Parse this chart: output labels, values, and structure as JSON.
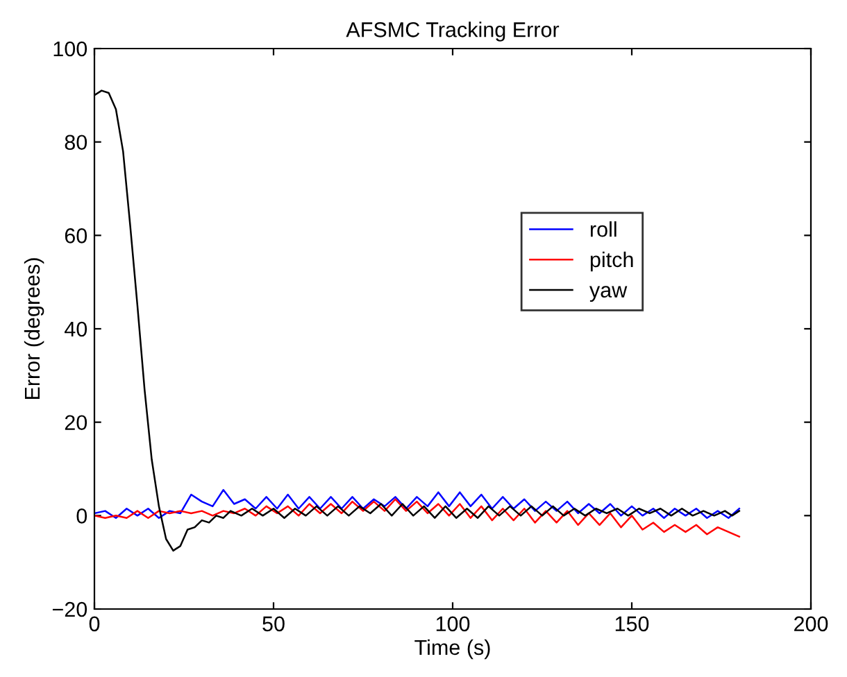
{
  "chart_data": {
    "type": "line",
    "title": "AFSMC Tracking Error",
    "xlabel": "Time (s)",
    "ylabel": "Error (degrees)",
    "xlim": [
      0,
      200
    ],
    "ylim": [
      -20,
      100
    ],
    "xticks": [
      0,
      50,
      100,
      150,
      200
    ],
    "yticks": [
      -20,
      0,
      20,
      40,
      60,
      80,
      100
    ],
    "grid": false,
    "legend": "right",
    "marker": "none",
    "line_style": "solid",
    "series": [
      {
        "name": "roll",
        "color": "#0000ff",
        "x": [
          0,
          3,
          6,
          9,
          12,
          15,
          18,
          21,
          24,
          27,
          30,
          33,
          36,
          39,
          42,
          45,
          48,
          51,
          54,
          57,
          60,
          63,
          66,
          69,
          72,
          75,
          78,
          81,
          84,
          87,
          90,
          93,
          96,
          99,
          102,
          105,
          108,
          111,
          114,
          117,
          120,
          123,
          126,
          129,
          132,
          135,
          138,
          141,
          144,
          147,
          150,
          153,
          156,
          159,
          162,
          165,
          168,
          171,
          174,
          177,
          180
        ],
        "values": [
          0.5,
          1,
          -0.5,
          1.5,
          0,
          1.5,
          -0.5,
          1,
          0.5,
          4.5,
          3,
          2,
          5.5,
          2.5,
          3.5,
          1.5,
          4,
          1.5,
          4.5,
          1.5,
          4,
          1.5,
          4,
          1.5,
          4,
          1.5,
          3.5,
          2,
          4,
          1.5,
          4,
          2,
          5,
          2,
          5,
          2,
          4.5,
          1.5,
          4,
          1.5,
          3.5,
          1,
          3,
          1,
          3,
          0.5,
          2.5,
          0.5,
          2.5,
          0,
          2,
          0,
          1.5,
          -0.5,
          1.5,
          0,
          1.5,
          -0.5,
          1,
          -0.5,
          1.5
        ]
      },
      {
        "name": "pitch",
        "color": "#ff0000",
        "x": [
          0,
          3,
          6,
          9,
          12,
          15,
          18,
          21,
          24,
          27,
          30,
          33,
          36,
          39,
          42,
          45,
          48,
          51,
          54,
          57,
          60,
          63,
          66,
          69,
          72,
          75,
          78,
          81,
          84,
          87,
          90,
          93,
          96,
          99,
          102,
          105,
          108,
          111,
          114,
          117,
          120,
          123,
          126,
          129,
          132,
          135,
          138,
          141,
          144,
          147,
          150,
          153,
          156,
          159,
          162,
          165,
          168,
          171,
          174,
          177,
          180
        ],
        "values": [
          0,
          -0.5,
          0,
          -0.5,
          1,
          -0.5,
          1,
          0.5,
          1,
          0.5,
          1,
          0,
          1,
          0.5,
          1.5,
          0,
          2,
          0.5,
          2,
          0,
          2.5,
          0.5,
          2.5,
          0.5,
          3,
          1,
          3,
          1,
          3.5,
          1,
          3,
          0.5,
          2.5,
          0,
          2.5,
          -0.5,
          2,
          -1,
          1.5,
          -1,
          1.5,
          -1.5,
          1,
          -1.5,
          1,
          -2,
          0.5,
          -2,
          0.5,
          -2.5,
          0,
          -3,
          -1.5,
          -3.5,
          -2,
          -3.5,
          -2,
          -4,
          -2.5,
          -3.5,
          -4.5
        ]
      },
      {
        "name": "yaw",
        "color": "#000000",
        "x": [
          0,
          2,
          4,
          6,
          8,
          10,
          12,
          14,
          16,
          18,
          20,
          22,
          24,
          26,
          28,
          30,
          32,
          34,
          36,
          38,
          41,
          44,
          47,
          50,
          53,
          56,
          59,
          62,
          65,
          68,
          71,
          74,
          77,
          80,
          83,
          86,
          89,
          92,
          95,
          98,
          101,
          104,
          107,
          110,
          113,
          116,
          119,
          122,
          125,
          128,
          131,
          134,
          137,
          140,
          143,
          146,
          149,
          152,
          155,
          158,
          161,
          164,
          167,
          170,
          173,
          176,
          178,
          180
        ],
        "values": [
          90,
          91,
          90.5,
          87,
          78,
          62,
          45,
          27,
          12,
          2,
          -5,
          -7.5,
          -6.5,
          -3,
          -2.5,
          -1,
          -1.5,
          0,
          -0.5,
          1,
          0,
          1.5,
          0,
          1.5,
          -0.5,
          1.5,
          0,
          2,
          0,
          2,
          0,
          2,
          0.5,
          2.5,
          0,
          2.5,
          0,
          2,
          -0.5,
          2,
          -0.5,
          1.5,
          -0.5,
          2,
          0,
          2,
          0,
          2,
          0,
          2,
          0,
          1.5,
          0,
          1.5,
          0.5,
          1.5,
          0,
          1.5,
          0.5,
          1.5,
          0,
          1.5,
          0,
          1,
          0,
          1,
          0,
          1
        ]
      }
    ]
  }
}
